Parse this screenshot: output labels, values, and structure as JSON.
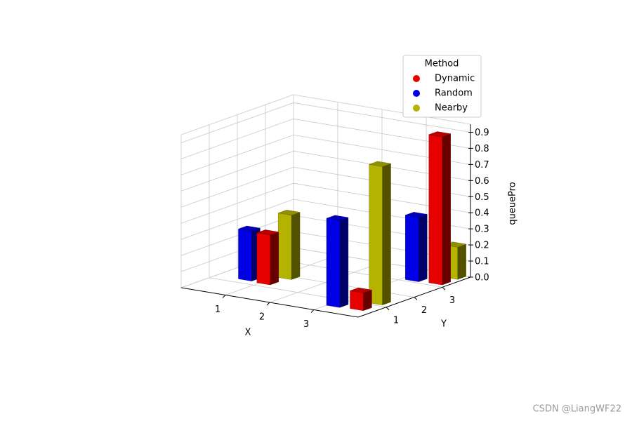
{
  "chart_data": {
    "type": "bar3d",
    "xlabel": "X",
    "ylabel": "Y",
    "zlabel": "queuePro",
    "xlim": [
      0,
      4
    ],
    "ylim": [
      0,
      4
    ],
    "zlim": [
      0,
      0.95
    ],
    "xticks": [
      1,
      2,
      3
    ],
    "yticks": [
      1,
      2,
      3
    ],
    "zticks": [
      {
        "value": 0,
        "label": "0.0"
      },
      0.1,
      0.2,
      0.3,
      0.4,
      0.5,
      0.6,
      0.7,
      0.8,
      0.9
    ],
    "grid": true,
    "legend": {
      "title": "Method",
      "position": "upper right"
    },
    "series": [
      {
        "name": "Dynamic",
        "color": "#e60000",
        "x": [
          0.95,
          3.5,
          3.6
        ],
        "y": [
          1.2,
          0.5,
          3.15
        ],
        "values": [
          0.31,
          0.11,
          0.92
        ]
      },
      {
        "name": "Random",
        "color": "#0000e6",
        "x": [
          0.5,
          3.0,
          3.1
        ],
        "y": [
          1.25,
          0.45,
          3.1
        ],
        "values": [
          0.31,
          0.54,
          0.4
        ]
      },
      {
        "name": "Nearby",
        "color": "#b4b400",
        "x": [
          1.05,
          3.55,
          3.6
        ],
        "y": [
          1.8,
          1.1,
          3.7
        ],
        "values": [
          0.4,
          0.86,
          0.2
        ]
      }
    ],
    "watermark": "CSDN @LiangWF22"
  }
}
